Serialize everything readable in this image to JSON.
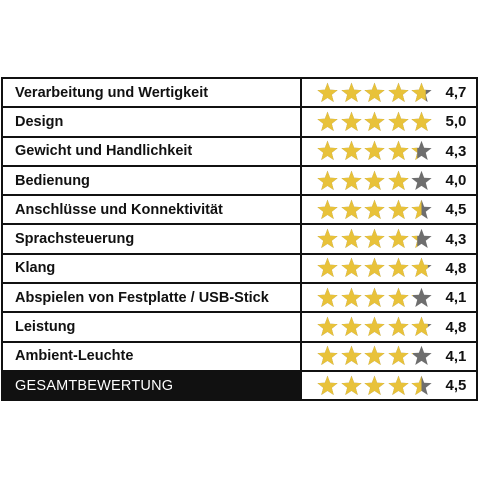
{
  "colors": {
    "star_filled": "#e8c23a",
    "star_empty": "#6e6e6e",
    "border": "#111111",
    "total_background": "#111111",
    "total_text": "#ffffff"
  },
  "rows": [
    {
      "label": "Verarbeitung und Wertigkeit",
      "score": "4,7",
      "rating": 4.7
    },
    {
      "label": "Design",
      "score": "5,0",
      "rating": 5.0
    },
    {
      "label": "Gewicht und Handlichkeit",
      "score": "4,3",
      "rating": 4.3
    },
    {
      "label": "Bedienung",
      "score": "4,0",
      "rating": 4.0
    },
    {
      "label": "Anschlüsse und Konnektivität",
      "score": "4,5",
      "rating": 4.5
    },
    {
      "label": "Sprachsteuerung",
      "score": "4,3",
      "rating": 4.3
    },
    {
      "label": "Klang",
      "score": "4,8",
      "rating": 4.8
    },
    {
      "label": "Abspielen von Festplatte / USB-Stick",
      "score": "4,1",
      "rating": 4.1
    },
    {
      "label": "Leistung",
      "score": "4,8",
      "rating": 4.8
    },
    {
      "label": "Ambient-Leuchte",
      "score": "4,1",
      "rating": 4.1
    }
  ],
  "total": {
    "label": "GESAMTBEWERTUNG",
    "score": "4,5",
    "rating": 4.5
  },
  "max_stars": 5
}
